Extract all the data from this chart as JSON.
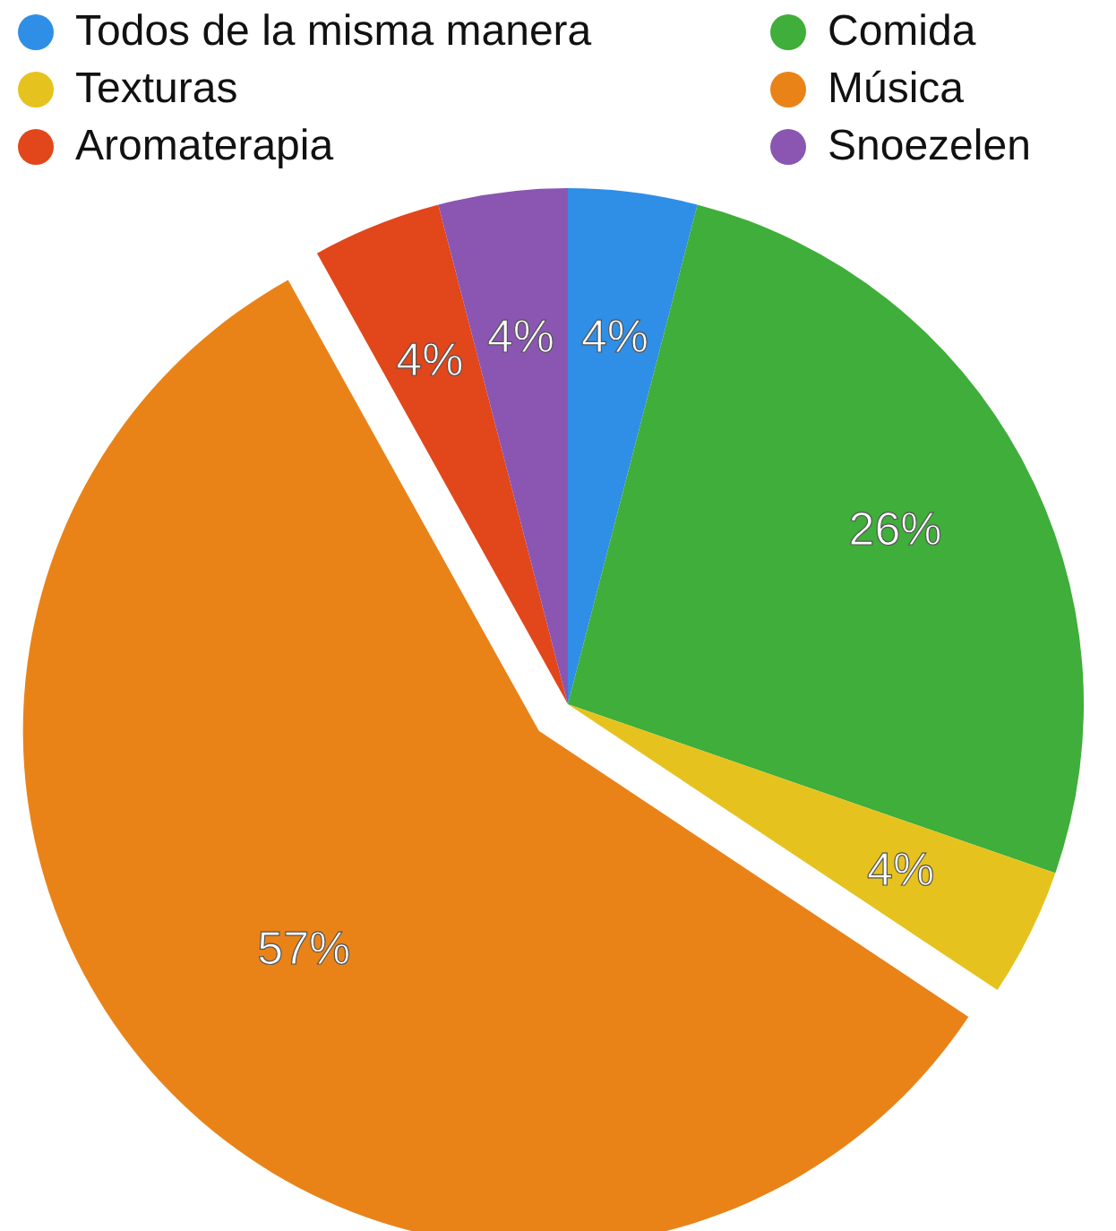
{
  "chart_data": {
    "type": "pie",
    "categories": [
      "Todos de la misma manera",
      "Comida",
      "Texturas",
      "Música",
      "Aromaterapia",
      "Snoezelen"
    ],
    "values": [
      4,
      26,
      4,
      57,
      4,
      4
    ],
    "colors": [
      "#2f8ee6",
      "#3fae3a",
      "#e6c21e",
      "#e98318",
      "#e2461b",
      "#8a56b2"
    ],
    "value_labels": [
      "4%",
      "26%",
      "4%",
      "57%",
      "4%",
      "4%"
    ],
    "legend": "top"
  }
}
